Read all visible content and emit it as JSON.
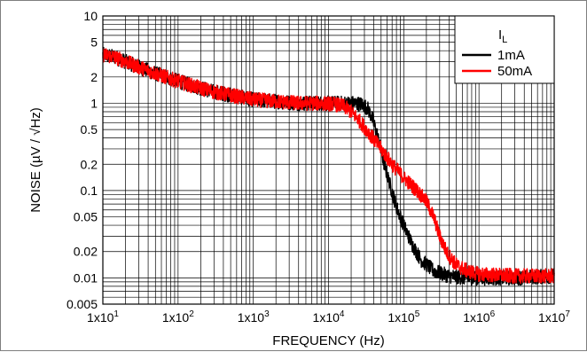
{
  "chart_data": {
    "type": "line",
    "xlabel": "FREQUENCY (Hz)",
    "ylabel": "NOISE (µV / √Hz)",
    "xscale": "log",
    "yscale": "log",
    "xlim": [
      10,
      10000000
    ],
    "ylim": [
      0.005,
      10
    ],
    "grid": true,
    "legend": {
      "position": "top-right",
      "title": "I",
      "title_subscript": "L"
    },
    "xticks": [
      {
        "value": 10,
        "label": "1x10",
        "exp": "1"
      },
      {
        "value": 100,
        "label": "1x10",
        "exp": "2"
      },
      {
        "value": 1000,
        "label": "1x10",
        "exp": "3"
      },
      {
        "value": 10000,
        "label": "1x10",
        "exp": "4"
      },
      {
        "value": 100000,
        "label": "1x10",
        "exp": "5"
      },
      {
        "value": 1000000,
        "label": "1x10",
        "exp": "6"
      },
      {
        "value": 10000000,
        "label": "1x10",
        "exp": "7"
      }
    ],
    "yticks": [
      {
        "value": 10,
        "label": "10"
      },
      {
        "value": 5,
        "label": "5"
      },
      {
        "value": 2,
        "label": "2"
      },
      {
        "value": 1,
        "label": "1"
      },
      {
        "value": 0.5,
        "label": "0.5"
      },
      {
        "value": 0.2,
        "label": "0.2"
      },
      {
        "value": 0.1,
        "label": "0.1"
      },
      {
        "value": 0.05,
        "label": "0.05"
      },
      {
        "value": 0.02,
        "label": "0.02"
      },
      {
        "value": 0.01,
        "label": "0.01"
      },
      {
        "value": 0.005,
        "label": "0.005"
      }
    ],
    "series": [
      {
        "name": "1mA",
        "color": "#000000",
        "points": [
          [
            10,
            3.6
          ],
          [
            14,
            3.4
          ],
          [
            20,
            3.0
          ],
          [
            30,
            2.6
          ],
          [
            50,
            2.2
          ],
          [
            80,
            1.9
          ],
          [
            150,
            1.6
          ],
          [
            300,
            1.35
          ],
          [
            600,
            1.2
          ],
          [
            1000,
            1.1
          ],
          [
            2000,
            1.05
          ],
          [
            4000,
            1.0
          ],
          [
            8000,
            1.0
          ],
          [
            15000,
            1.0
          ],
          [
            22000,
            1.0
          ],
          [
            28000,
            0.97
          ],
          [
            33000,
            0.88
          ],
          [
            38000,
            0.68
          ],
          [
            45000,
            0.42
          ],
          [
            55000,
            0.2
          ],
          [
            65000,
            0.12
          ],
          [
            80000,
            0.065
          ],
          [
            100000,
            0.04
          ],
          [
            130000,
            0.024
          ],
          [
            170000,
            0.016
          ],
          [
            250000,
            0.012
          ],
          [
            400000,
            0.0105
          ],
          [
            700000,
            0.01
          ],
          [
            1000000,
            0.01
          ],
          [
            3000000,
            0.01
          ],
          [
            10000000,
            0.0105
          ]
        ]
      },
      {
        "name": "50mA",
        "color": "#ff0000",
        "points": [
          [
            10,
            3.6
          ],
          [
            14,
            3.4
          ],
          [
            20,
            3.0
          ],
          [
            30,
            2.6
          ],
          [
            50,
            2.2
          ],
          [
            80,
            1.9
          ],
          [
            150,
            1.6
          ],
          [
            300,
            1.35
          ],
          [
            600,
            1.2
          ],
          [
            1000,
            1.1
          ],
          [
            2000,
            1.05
          ],
          [
            4000,
            1.0
          ],
          [
            8000,
            1.0
          ],
          [
            12000,
            0.98
          ],
          [
            16000,
            0.92
          ],
          [
            20000,
            0.8
          ],
          [
            25000,
            0.65
          ],
          [
            35000,
            0.45
          ],
          [
            50000,
            0.3
          ],
          [
            70000,
            0.2
          ],
          [
            100000,
            0.14
          ],
          [
            150000,
            0.1
          ],
          [
            200000,
            0.075
          ],
          [
            250000,
            0.05
          ],
          [
            300000,
            0.03
          ],
          [
            380000,
            0.019
          ],
          [
            500000,
            0.014
          ],
          [
            700000,
            0.012
          ],
          [
            1000000,
            0.011
          ],
          [
            3000000,
            0.0105
          ],
          [
            10000000,
            0.0105
          ]
        ]
      }
    ]
  }
}
